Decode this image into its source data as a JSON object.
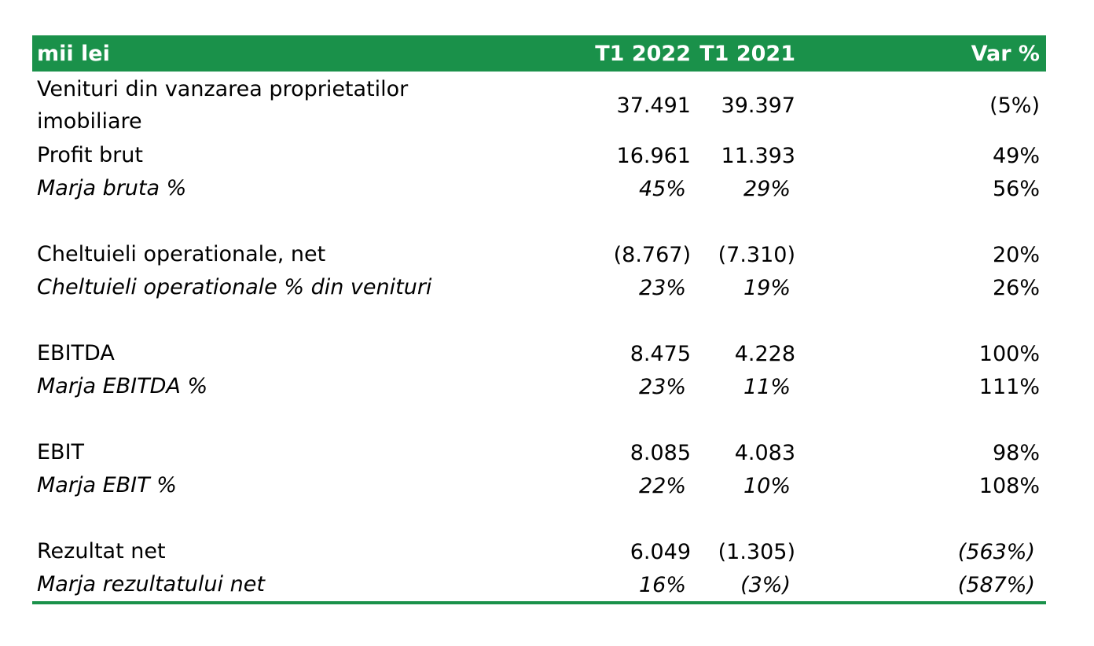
{
  "header": {
    "unit": "mii lei",
    "col1": "T1 2022",
    "col2": "T1 2021",
    "col3": "Var %"
  },
  "rows": [
    {
      "label": "Venituri din vanzarea proprietatilor imobiliare",
      "t1_2022": "37.491",
      "t1_2021": "39.397",
      "var": "(5%)"
    },
    {
      "label": "Profit brut",
      "t1_2022": "16.961",
      "t1_2021": "11.393",
      "var": "49%"
    },
    {
      "label": "Marja bruta %",
      "t1_2022": "45%",
      "t1_2021": "29%",
      "var": "56%"
    },
    {
      "label": "Cheltuieli operationale, net",
      "t1_2022": "(8.767)",
      "t1_2021": "(7.310)",
      "var": "20%"
    },
    {
      "label": "Cheltuieli operationale % din venituri",
      "t1_2022": "23%",
      "t1_2021": "19%",
      "var": "26%"
    },
    {
      "label": "EBITDA",
      "t1_2022": "8.475",
      "t1_2021": "4.228",
      "var": "100%"
    },
    {
      "label": "Marja EBITDA %",
      "t1_2022": "23%",
      "t1_2021": "11%",
      "var": "111%"
    },
    {
      "label": "EBIT",
      "t1_2022": "8.085",
      "t1_2021": "4.083",
      "var": "98%"
    },
    {
      "label": "Marja EBIT %",
      "t1_2022": "22%",
      "t1_2021": "10%",
      "var": "108%"
    },
    {
      "label": "Rezultat net",
      "t1_2022": "6.049",
      "t1_2021": "(1.305)",
      "var": "(563%)"
    },
    {
      "label": "Marja rezultatului net",
      "t1_2022": "16%",
      "t1_2021": "(3%)",
      "var": "(587%)"
    }
  ],
  "colors": {
    "header_bg": "#1a914a",
    "header_text": "#ffffff",
    "border": "#1a914a"
  }
}
